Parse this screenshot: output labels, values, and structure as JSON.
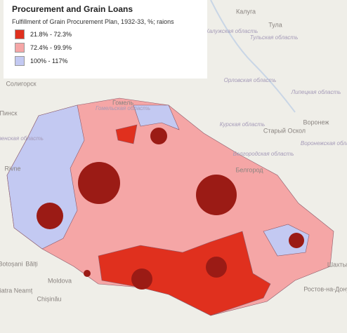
{
  "legend": {
    "title": "Procurement and Grain Loans",
    "subtitle": "Fulfillment of Grain Procurement Plan, 1932-33, %; raions",
    "items": [
      {
        "label": "21.8% - 72.3%",
        "color": "#e0301e"
      },
      {
        "label": "72.4% - 99.9%",
        "color": "#f5a6a6"
      },
      {
        "label": "100% - 117%",
        "color": "#c3c9f2"
      }
    ]
  },
  "places": [
    "Калуга",
    "Тула",
    "Тульская область",
    "Калужская область",
    "Орловская область",
    "Липецкая область",
    "Курская область",
    "Старый Оскол",
    "Воронеж",
    "Воронежская область",
    "Белгородская область",
    "Белгород",
    "Гомель",
    "Гомельская область",
    "Солигорск",
    "Пинск",
    "Ровенская область",
    "Rivne",
    "Botoșani",
    "Bălți",
    "Piatra Neamț",
    "Moldova",
    "Chișinău",
    "Шахты",
    "Ростов-на-Дону"
  ]
}
